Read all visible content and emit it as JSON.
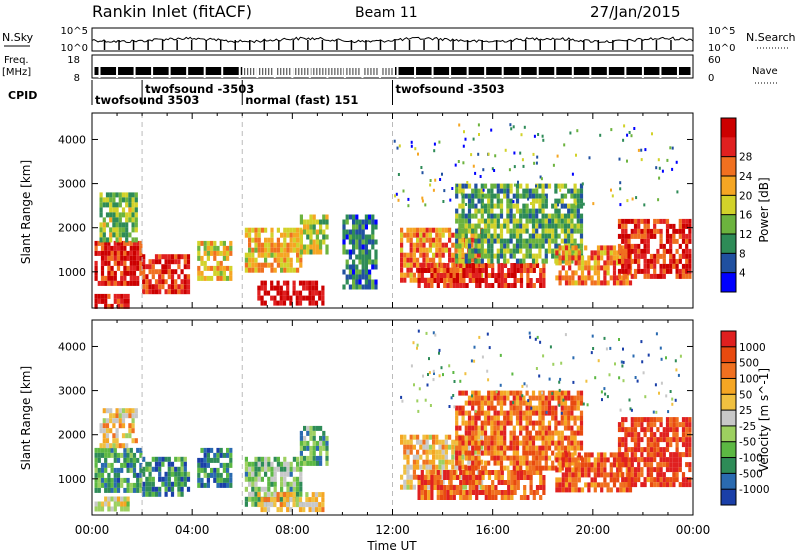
{
  "header": {
    "title": "Rankin Inlet (fitACF)",
    "beam": "Beam 11",
    "date": "27/Jan/2015"
  },
  "top_panels": {
    "nsky_label": "N.Sky",
    "nsky_ticks": [
      "10^5",
      "10^0"
    ],
    "nsearch_label": "N.Search",
    "nsearch_ticks": [
      "10^5",
      "10^0"
    ],
    "freq_label": "Freq.",
    "freq_unit": "[MHz]",
    "freq_ticks": [
      "18",
      "8"
    ],
    "nave_label": "Nave",
    "nave_ticks": [
      "60",
      "0"
    ],
    "cpid_label": "CPID"
  },
  "cpid_segments": [
    {
      "label": "twofsound 3503",
      "start_hour": 0,
      "end_hour": 2
    },
    {
      "label": "twofsound -3503",
      "start_hour": 2,
      "end_hour": 6
    },
    {
      "label": "normal (fast) 151",
      "start_hour": 6,
      "end_hour": 12
    },
    {
      "label": "twofsound -3503",
      "start_hour": 12,
      "end_hour": 24
    }
  ],
  "chart_data": [
    {
      "type": "heatmap",
      "panel": "power",
      "ylabel": "Slant Range [km]",
      "xlabel": "",
      "ylim": [
        180,
        4600
      ],
      "xlim": [
        0,
        24
      ],
      "yticks": [
        1000,
        2000,
        3000,
        4000
      ],
      "colorbar_label": "Power [dB]",
      "colorbar_ticks": [
        "4",
        "8",
        "12",
        "16",
        "20",
        "24",
        "28"
      ],
      "colorbar_colors": [
        "#0000ff",
        "#2050a0",
        "#2e8b57",
        "#6cb33e",
        "#d2d22a",
        "#f5a623",
        "#f07020",
        "#e02020",
        "#cc0000"
      ],
      "regions": [
        {
          "x": [
            0.1,
            1.9
          ],
          "y": [
            700,
            1700
          ],
          "level": 0.85
        },
        {
          "x": [
            0.1,
            1.4
          ],
          "y": [
            250,
            500
          ],
          "level": 0.9
        },
        {
          "x": [
            0.3,
            1.8
          ],
          "y": [
            1700,
            2800
          ],
          "level": 0.4
        },
        {
          "x": [
            2.0,
            3.8
          ],
          "y": [
            600,
            1400
          ],
          "level": 0.85
        },
        {
          "x": [
            4.2,
            5.6
          ],
          "y": [
            800,
            1700
          ],
          "level": 0.55
        },
        {
          "x": [
            6.1,
            8.4
          ],
          "y": [
            1000,
            2000
          ],
          "level": 0.6
        },
        {
          "x": [
            6.6,
            9.2
          ],
          "y": [
            250,
            800
          ],
          "level": 0.95
        },
        {
          "x": [
            8.3,
            9.4
          ],
          "y": [
            1400,
            2300
          ],
          "level": 0.45
        },
        {
          "x": [
            10.0,
            11.3
          ],
          "y": [
            600,
            2300
          ],
          "level": 0.25
        },
        {
          "x": [
            12.3,
            15.5
          ],
          "y": [
            800,
            2000
          ],
          "level": 0.7
        },
        {
          "x": [
            13.0,
            18.0
          ],
          "y": [
            650,
            1200
          ],
          "level": 0.85
        },
        {
          "x": [
            14.5,
            19.5
          ],
          "y": [
            1200,
            3000
          ],
          "level": 0.35
        },
        {
          "x": [
            18.5,
            21.5
          ],
          "y": [
            800,
            1600
          ],
          "level": 0.7
        },
        {
          "x": [
            21.0,
            23.9
          ],
          "y": [
            900,
            2200
          ],
          "level": 0.85
        }
      ]
    },
    {
      "type": "heatmap",
      "panel": "velocity",
      "ylabel": "Slant Range [km]",
      "xlabel": "Time UT",
      "ylim": [
        180,
        4600
      ],
      "xlim": [
        0,
        24
      ],
      "yticks": [
        1000,
        2000,
        3000,
        4000
      ],
      "xticks": [
        "00:00",
        "04:00",
        "08:00",
        "12:00",
        "16:00",
        "20:00",
        "00:00"
      ],
      "colorbar_label": "Velocity [m s^-1]",
      "colorbar_ticks": [
        "1000",
        "500",
        "100",
        "50",
        "25",
        "-25",
        "-50",
        "-100",
        "-500",
        "-1000"
      ],
      "colorbar_colors": [
        "#1a3fa8",
        "#2a6ab0",
        "#2e8b57",
        "#5cb843",
        "#9dd060",
        "#c8c8c8",
        "#f0c040",
        "#f5a623",
        "#f07020",
        "#e84a10",
        "#e02020"
      ],
      "regions": [
        {
          "x": [
            0.1,
            1.9
          ],
          "y": [
            700,
            1700
          ],
          "level": 0.25
        },
        {
          "x": [
            0.1,
            1.4
          ],
          "y": [
            300,
            600
          ],
          "level": 0.5
        },
        {
          "x": [
            0.3,
            1.8
          ],
          "y": [
            1700,
            2600
          ],
          "level": 0.6
        },
        {
          "x": [
            2.0,
            3.8
          ],
          "y": [
            700,
            1500
          ],
          "level": 0.2
        },
        {
          "x": [
            4.2,
            5.6
          ],
          "y": [
            800,
            1700
          ],
          "level": 0.2
        },
        {
          "x": [
            6.1,
            8.4
          ],
          "y": [
            400,
            1500
          ],
          "level": 0.35
        },
        {
          "x": [
            6.6,
            9.2
          ],
          "y": [
            250,
            700
          ],
          "level": 0.6
        },
        {
          "x": [
            8.3,
            9.4
          ],
          "y": [
            1400,
            2200
          ],
          "level": 0.3
        },
        {
          "x": [
            12.3,
            15.5
          ],
          "y": [
            800,
            2000
          ],
          "level": 0.6
        },
        {
          "x": [
            13.0,
            18.0
          ],
          "y": [
            600,
            1200
          ],
          "level": 0.85
        },
        {
          "x": [
            14.5,
            19.5
          ],
          "y": [
            1200,
            3000
          ],
          "level": 0.8
        },
        {
          "x": [
            18.5,
            21.5
          ],
          "y": [
            800,
            1600
          ],
          "level": 0.85
        },
        {
          "x": [
            21.0,
            23.9
          ],
          "y": [
            900,
            2400
          ],
          "level": 0.9
        }
      ]
    }
  ]
}
